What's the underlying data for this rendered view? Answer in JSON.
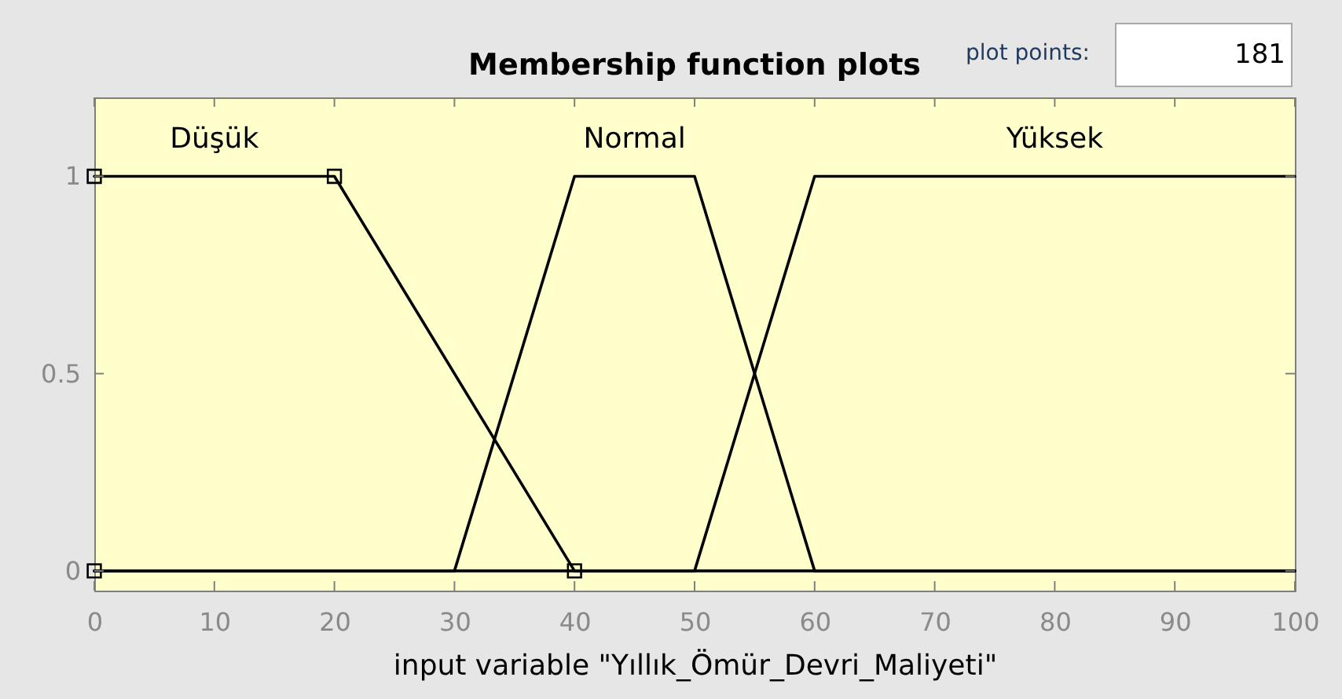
{
  "chart_data": {
    "type": "line",
    "title": "Membership function plots",
    "xlabel": "input variable \"Yıllık_Ömür_Devri_Maliyeti\"",
    "xlim": [
      0,
      100
    ],
    "ylim": [
      -0.05,
      1.2
    ],
    "xticks": [
      0,
      10,
      20,
      30,
      40,
      50,
      60,
      70,
      80,
      90,
      100
    ],
    "yticks": [
      0,
      0.5,
      1
    ],
    "line_style": "solid",
    "annotations": [
      "plot points:",
      "181"
    ],
    "series": [
      {
        "name": "Düşük",
        "color": "#000000",
        "x": [
          0,
          20,
          40,
          100
        ],
        "values": [
          1,
          1,
          0,
          0
        ]
      },
      {
        "type": "scatter",
        "marker": "square",
        "color": "#000000",
        "x": [
          0,
          0,
          20,
          40
        ],
        "values": [
          0,
          1,
          1,
          0
        ]
      },
      {
        "name": "Normal",
        "color": "#000000",
        "x": [
          0,
          30,
          40,
          50,
          60,
          100
        ],
        "values": [
          0,
          0,
          1,
          1,
          0,
          0
        ]
      },
      {
        "name": "Yüksek",
        "color": "#000000",
        "x": [
          0,
          50,
          60,
          100
        ],
        "values": [
          0,
          0,
          1,
          1
        ]
      }
    ]
  }
}
